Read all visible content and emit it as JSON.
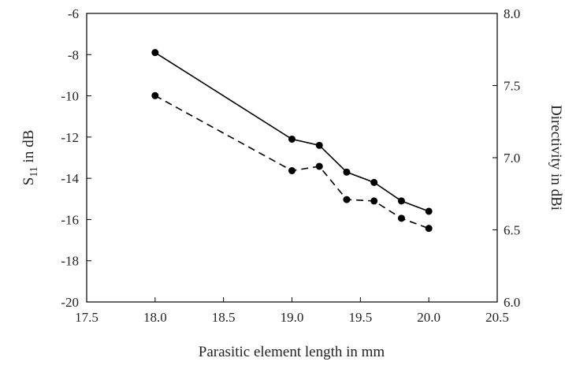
{
  "chart_data": {
    "type": "line",
    "xlabel": "Parasitic element length in mm",
    "ylabel_left_main": "S",
    "ylabel_left_sub": "11",
    "ylabel_left_rest": " in dB",
    "ylabel_right": "Directivity in dBi",
    "xlim": [
      17.5,
      20.5
    ],
    "ylim_left": [
      -20,
      -6
    ],
    "ylim_right": [
      6.0,
      8.0
    ],
    "x_ticks": [
      "17.5",
      "18.0",
      "18.5",
      "19.0",
      "19.5",
      "20.0",
      "20.5"
    ],
    "x_tick_values": [
      17.5,
      18.0,
      18.5,
      19.0,
      19.5,
      20.0,
      20.5
    ],
    "y_left_ticks": [
      "-6",
      "-8",
      "-10",
      "-12",
      "-14",
      "-16",
      "-18",
      "-20"
    ],
    "y_left_tick_values": [
      -6,
      -8,
      -10,
      -12,
      -14,
      -16,
      -18,
      -20
    ],
    "y_right_ticks": [
      "8.0",
      "7.5",
      "7.0",
      "6.5",
      "6.0"
    ],
    "y_right_tick_values": [
      8.0,
      7.5,
      7.0,
      6.5,
      6.0
    ],
    "grid": false,
    "series": [
      {
        "axis": "left",
        "style": "solid",
        "color": "#000000",
        "x": [
          18.0,
          19.0,
          19.2,
          19.4,
          19.6,
          19.8,
          20.0
        ],
        "y": [
          -7.9,
          -12.1,
          -12.4,
          -13.7,
          -14.2,
          -15.1,
          -15.6
        ]
      },
      {
        "axis": "right",
        "style": "dashed",
        "color": "#000000",
        "x": [
          18.0,
          19.0,
          19.2,
          19.4,
          19.6,
          19.8,
          20.0
        ],
        "y": [
          7.43,
          6.91,
          6.94,
          6.71,
          6.7,
          6.58,
          6.51
        ]
      }
    ]
  }
}
